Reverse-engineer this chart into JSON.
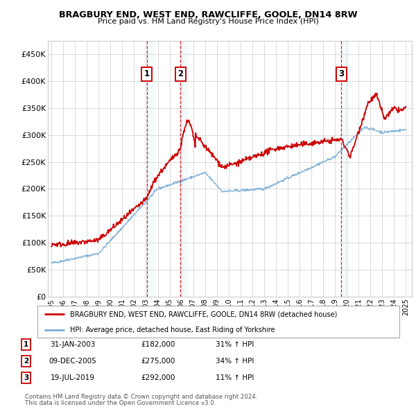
{
  "title": "BRAGBURY END, WEST END, RAWCLIFFE, GOOLE, DN14 8RW",
  "subtitle": "Price paid vs. HM Land Registry's House Price Index (HPI)",
  "ylim": [
    0,
    475000
  ],
  "yticks": [
    0,
    50000,
    100000,
    150000,
    200000,
    250000,
    300000,
    350000,
    400000,
    450000
  ],
  "ytick_labels": [
    "£0",
    "£50K",
    "£100K",
    "£150K",
    "£200K",
    "£250K",
    "£300K",
    "£350K",
    "£400K",
    "£450K"
  ],
  "xlim_start": 1994.7,
  "xlim_end": 2025.5,
  "sale_dates": [
    2003.08,
    2005.92,
    2019.54
  ],
  "sale_prices": [
    182000,
    275000,
    292000
  ],
  "sale_labels": [
    "1",
    "2",
    "3"
  ],
  "sale_date_str": [
    "31-JAN-2003",
    "09-DEC-2005",
    "19-JUL-2019"
  ],
  "sale_price_str": [
    "£182,000",
    "£275,000",
    "£292,000"
  ],
  "sale_hpi_str": [
    "31% ↑ HPI",
    "34% ↑ HPI",
    "11% ↑ HPI"
  ],
  "legend_property": "BRAGBURY END, WEST END, RAWCLIFFE, GOOLE, DN14 8RW (detached house)",
  "legend_hpi": "HPI: Average price, detached house, East Riding of Yorkshire",
  "footnote1": "Contains HM Land Registry data © Crown copyright and database right 2024.",
  "footnote2": "This data is licensed under the Open Government Licence v3.0.",
  "property_color": "#cc0000",
  "hpi_color": "#7aaed6",
  "shade_color": "#d6e8f7",
  "grid_color": "#cccccc",
  "background_color": "#ffffff"
}
